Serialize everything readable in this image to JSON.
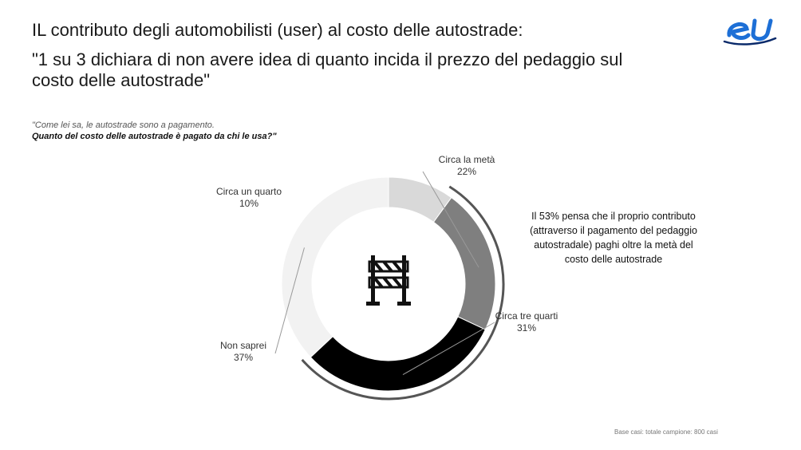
{
  "header": {
    "title": "IL contributo degli automobilisti (user) al costo delle autostrade:",
    "subtitle": "\"1 su 3 dichiara di non avere idea di quanto incida il prezzo del pedaggio sul costo delle autostrade\"",
    "logo_text": "eU"
  },
  "question": {
    "line1": "\"Come lei sa, le autostrade sono a pagamento.",
    "line2": "Quanto del costo delle autostrade è pagato da chi le usa?\""
  },
  "annotation": "Il 53% pensa che il proprio contributo (attraverso il pagamento del pedaggio autostradale) paghi oltre la metà del costo delle autostrade",
  "footnote": "Base casi: totale campione: 800 casi",
  "center_icon": "road-barrier-icon",
  "chart_data": {
    "type": "pie",
    "style": "donut",
    "categories": [
      "Circa la metà",
      "Circa tre quarti",
      "Non saprei",
      "Circa un quarto"
    ],
    "values": [
      22,
      31,
      37,
      10
    ],
    "value_labels": [
      "22%",
      "31%",
      "37%",
      "10%"
    ],
    "colors": [
      "#7f7f7f",
      "#000000",
      "#f2f2f2",
      "#d9d9d9"
    ],
    "highlight_arc": [
      "Circa la metà",
      "Circa tre quarti"
    ]
  }
}
